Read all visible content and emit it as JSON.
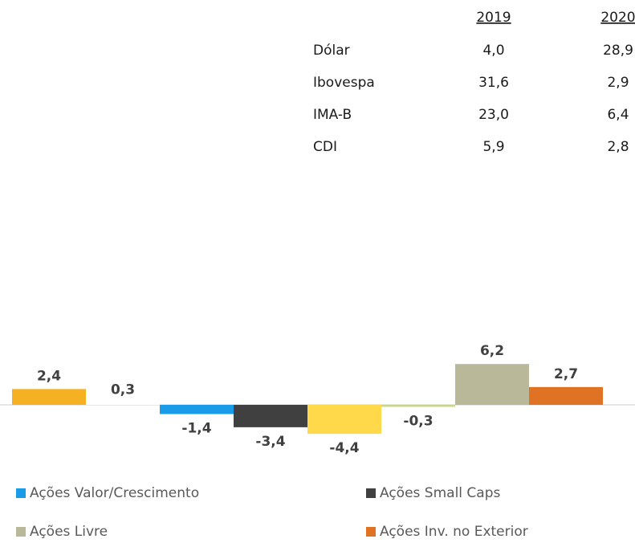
{
  "table": {
    "header": [
      "2019",
      "2020"
    ],
    "rows": [
      [
        "Dólar",
        "4,0",
        "28,9"
      ],
      [
        "Ibovespa",
        "31,6",
        "2,9"
      ],
      [
        "IMA-B",
        "23,0",
        "6,4"
      ],
      [
        "CDI",
        "5,9",
        "2,8"
      ]
    ]
  },
  "chart_data": {
    "type": "bar",
    "values": [
      2.4,
      0.3,
      -1.4,
      -3.4,
      -4.4,
      -0.3,
      6.2,
      2.7
    ],
    "value_labels": [
      "2,4",
      "0,3",
      "-1,4",
      "-3,4",
      "-4,4",
      "-0,3",
      "6,2",
      "2,7"
    ],
    "colors": [
      "#f5b122",
      "#ffffff",
      "#1a9be8",
      "#404040",
      "#ffd94a",
      "#c5d88a",
      "#b9b99a",
      "#e07323"
    ],
    "legend": [
      {
        "name": "Ações Valor/Crescimento",
        "color": "#1a9be8"
      },
      {
        "name": "Ações Small Caps",
        "color": "#404040"
      },
      {
        "name": "Ações Livre",
        "color": "#b9b99a"
      },
      {
        "name": "Ações Inv. no Exterior",
        "color": "#e07323"
      }
    ]
  }
}
